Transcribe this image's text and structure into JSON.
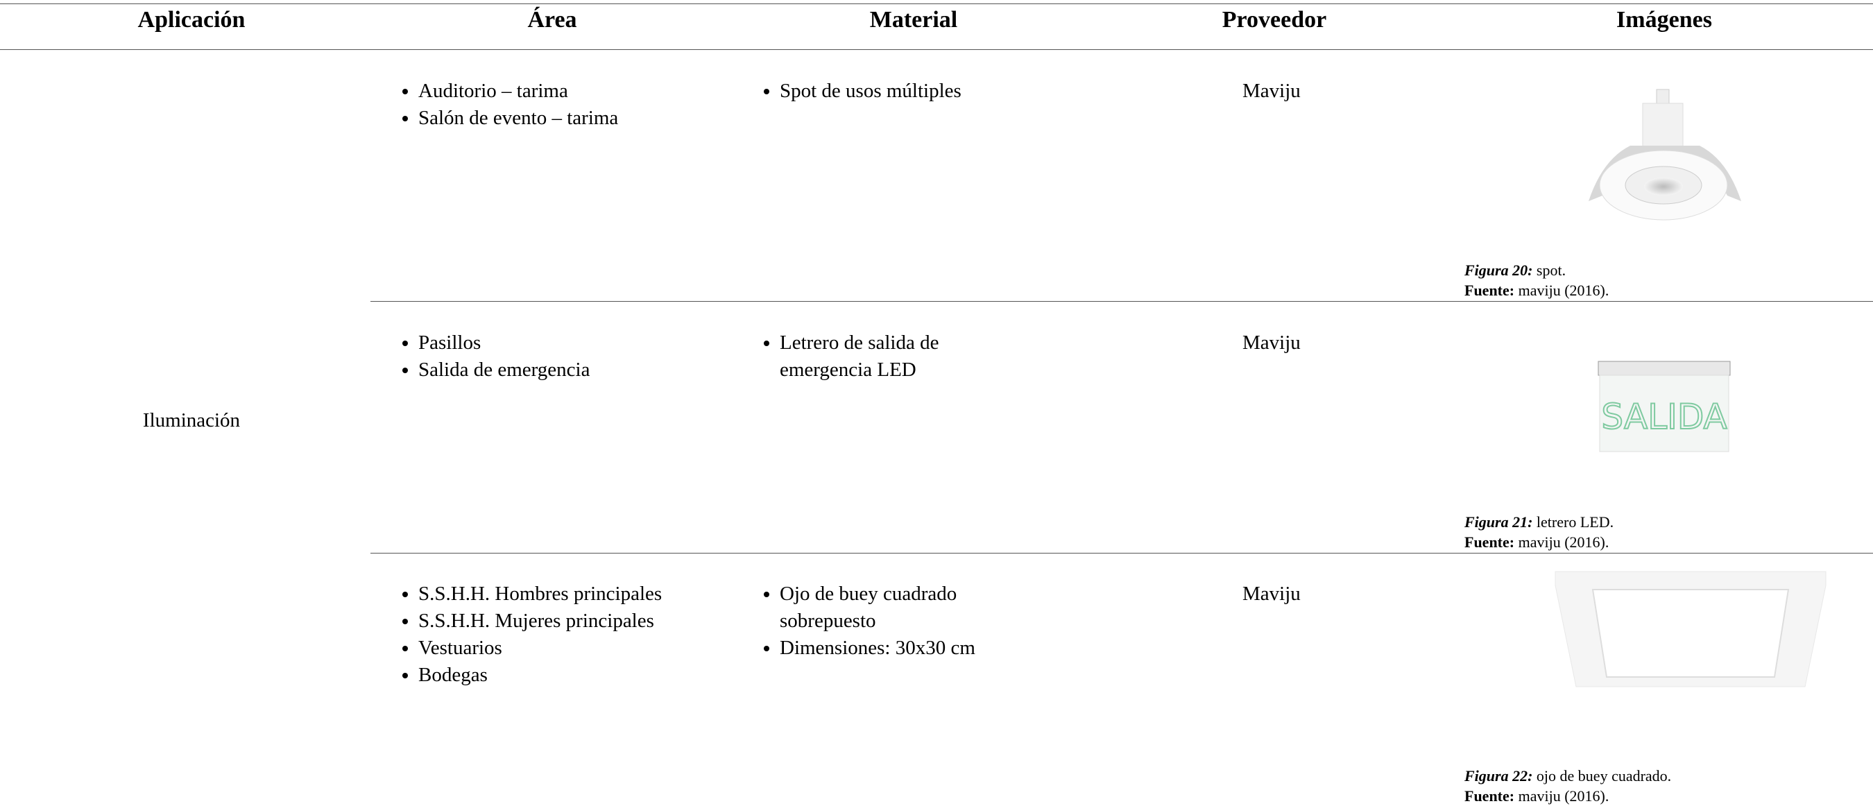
{
  "table": {
    "headers": [
      "Aplicación",
      "Área",
      "Material",
      "Proveedor",
      "Imágenes"
    ],
    "application": "Iluminación",
    "rows": [
      {
        "areas": [
          "Auditorio – tarima",
          "Salón de evento – tarima"
        ],
        "materials": [
          "Spot de usos múltiples"
        ],
        "provider": "Maviju",
        "caption": {
          "figure": "Figura 20:",
          "text": "spot.",
          "source_label": "Fuente:",
          "source": "maviju (2016)."
        }
      },
      {
        "areas": [
          "Pasillos",
          "Salida de emergencia"
        ],
        "materials": [
          "Letrero de salida de emergencia LED"
        ],
        "provider": "Maviju",
        "caption": {
          "figure": "Figura 21:",
          "text": "letrero LED.",
          "source_label": "Fuente:",
          "source": "maviju (2016)."
        }
      },
      {
        "areas": [
          "S.S.H.H. Hombres principales",
          "S.S.H.H. Mujeres principales",
          "Vestuarios",
          "Bodegas"
        ],
        "materials": [
          "Ojo de buey cuadrado sobrepuesto",
          "Dimensiones: 30x30 cm"
        ],
        "provider": "Maviju",
        "caption": {
          "figure": "Figura 22:",
          "text": "ojo de buey cuadrado.",
          "source_label": "Fuente:",
          "source": "maviju (2016)."
        }
      }
    ]
  }
}
